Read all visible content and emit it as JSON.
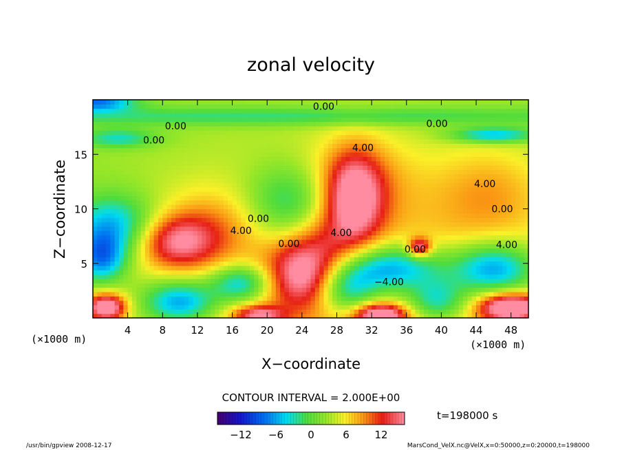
{
  "chart_data": {
    "type": "heatmap",
    "title": "zonal velocity",
    "xlabel": "X−coordinate",
    "ylabel": "Z−coordinate",
    "x_unit_label": "(×1000 m)",
    "x_ticks": [
      4,
      8,
      12,
      16,
      20,
      24,
      28,
      32,
      36,
      40,
      44,
      48
    ],
    "y_ticks": [
      5,
      10,
      15
    ],
    "xlim": [
      0,
      50
    ],
    "ylim": [
      0,
      20
    ],
    "contour_interval_text": "CONTOUR INTERVAL = 2.000E+00",
    "time_text": "t=198000 s",
    "colorbar": {
      "range": [
        -16,
        16
      ],
      "tick_values": [
        -12,
        -6,
        0,
        6,
        12
      ],
      "tick_labels": [
        "−12",
        "−6",
        "0",
        "6",
        "12"
      ]
    },
    "contour_labels": [
      {
        "text": "0.00",
        "x": 26.5,
        "z": 19.1
      },
      {
        "text": "0.00",
        "x": 9.5,
        "z": 17.3
      },
      {
        "text": "0.00",
        "x": 7.0,
        "z": 16.0
      },
      {
        "text": "0.00",
        "x": 39.5,
        "z": 17.5
      },
      {
        "text": "4.00",
        "x": 31.0,
        "z": 15.3
      },
      {
        "text": "4.00",
        "x": 45.0,
        "z": 12.0
      },
      {
        "text": "4.00",
        "x": 17.0,
        "z": 7.7
      },
      {
        "text": "0.00",
        "x": 19.0,
        "z": 8.8
      },
      {
        "text": "0.00",
        "x": 22.5,
        "z": 6.5
      },
      {
        "text": "4.00",
        "x": 28.5,
        "z": 7.5
      },
      {
        "text": "0.00",
        "x": 37.0,
        "z": 6.0
      },
      {
        "text": "0.00",
        "x": 47.0,
        "z": 9.7
      },
      {
        "text": "4.00",
        "x": 47.5,
        "z": 6.4
      },
      {
        "text": "−4.00",
        "x": 34.0,
        "z": 3.0
      }
    ],
    "features": [
      {
        "x": 32.0,
        "z": 1.5,
        "amp": 6.0,
        "sx": 20.0,
        "sz": 10.0
      },
      {
        "x": 30.0,
        "z": 11.0,
        "amp": 11.0,
        "sx": 2.3,
        "sz": 3.0
      },
      {
        "x": 30.5,
        "z": 12.5,
        "amp": 4.0,
        "sx": 4.5,
        "sz": 3.0
      },
      {
        "x": 9.5,
        "z": 7.0,
        "amp": 10.0,
        "sx": 3.2,
        "sz": 1.7
      },
      {
        "x": 13.5,
        "z": 8.5,
        "amp": 4.0,
        "sx": 4.5,
        "sz": 2.5
      },
      {
        "x": 24.0,
        "z": 4.0,
        "amp": 10.0,
        "sx": 2.8,
        "sz": 2.2
      },
      {
        "x": 26.5,
        "z": 6.5,
        "amp": 4.0,
        "sx": 3.0,
        "sz": 2.5
      },
      {
        "x": 45.5,
        "z": 11.5,
        "amp": 4.0,
        "sx": 4.5,
        "sz": 3.0
      },
      {
        "x": 22.5,
        "z": 10.5,
        "amp": -8.0,
        "sx": 3.5,
        "sz": 2.5
      },
      {
        "x": 34.0,
        "z": 4.5,
        "amp": -13.0,
        "sx": 4.5,
        "sz": 1.6
      },
      {
        "x": 46.0,
        "z": 4.5,
        "amp": -12.0,
        "sx": 3.5,
        "sz": 1.7
      },
      {
        "x": 2.5,
        "z": 8.5,
        "amp": -9.0,
        "sx": 3.5,
        "sz": 2.0
      },
      {
        "x": 1.0,
        "z": 5.5,
        "amp": -10.0,
        "sx": 2.0,
        "sz": 1.6
      },
      {
        "x": 17.0,
        "z": 3.2,
        "amp": -10.0,
        "sx": 2.5,
        "sz": 1.2
      },
      {
        "x": 10.0,
        "z": 1.5,
        "amp": -11.0,
        "sx": 3.0,
        "sz": 1.4
      },
      {
        "x": 29.0,
        "z": 2.5,
        "amp": -9.0,
        "sx": 2.5,
        "sz": 1.6
      },
      {
        "x": 39.5,
        "z": 1.5,
        "amp": -9.0,
        "sx": 2.5,
        "sz": 1.4
      },
      {
        "x": 1.5,
        "z": 1.0,
        "amp": 16.0,
        "sx": 1.6,
        "sz": 0.9
      },
      {
        "x": 48.0,
        "z": 1.0,
        "amp": 16.0,
        "sx": 2.5,
        "sz": 0.9
      },
      {
        "x": 19.0,
        "z": 0.3,
        "amp": 10.0,
        "sx": 2.0,
        "sz": 0.6
      },
      {
        "x": 33.0,
        "z": 0.3,
        "amp": 14.0,
        "sx": 2.0,
        "sz": 0.7
      },
      {
        "x": 37.5,
        "z": 6.5,
        "amp": 12.0,
        "sx": 0.9,
        "sz": 0.6
      },
      {
        "x": 25.0,
        "z": 18.5,
        "amp": -5.0,
        "sx": 30.0,
        "sz": 0.6
      },
      {
        "x": 46.0,
        "z": 16.8,
        "amp": -9.0,
        "sx": 3.5,
        "sz": 0.5
      },
      {
        "x": 3.0,
        "z": 16.5,
        "amp": -6.0,
        "sx": 3.0,
        "sz": 0.6
      },
      {
        "x": 0.5,
        "z": 19.8,
        "amp": -10.0,
        "sx": 3.0,
        "sz": 0.6
      }
    ],
    "base_value": 2.0
  },
  "footer": {
    "left": "/usr/bin/gpview   2008-12-17",
    "right": "MarsCond_VelX.nc@VelX,x=0:50000,z=0:20000,t=198000"
  }
}
